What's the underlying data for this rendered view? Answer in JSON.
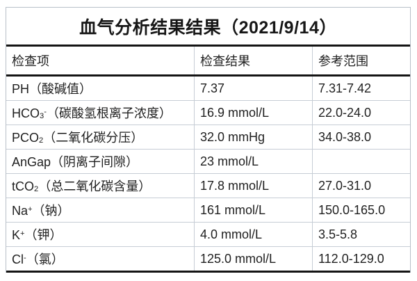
{
  "title": "血气分析结果结果（2021/9/14）",
  "colors": {
    "text": "#1f1f1f",
    "thick_rule": "#141414",
    "thin_rule": "#c6cdd5",
    "outer_border": "#b7bfc8",
    "background": "#ffffff"
  },
  "table": {
    "headers": [
      "检查项",
      "检查结果",
      "参考范围"
    ],
    "rows": [
      {
        "item": [
          {
            "t": "PH"
          },
          {
            "t": "（酸碱值）"
          }
        ],
        "result": "7.37",
        "range": "7.31-7.42"
      },
      {
        "item": [
          {
            "t": "HCO"
          },
          {
            "t": "3",
            "s": "sub"
          },
          {
            "t": "-",
            "s": "sup"
          },
          {
            "t": "（碳酸氢根离子浓度）"
          }
        ],
        "result": "16.9 mmol/L",
        "range": "22.0-24.0"
      },
      {
        "item": [
          {
            "t": "PCO"
          },
          {
            "t": "2",
            "s": "sub"
          },
          {
            "t": "（二氧化碳分压）"
          }
        ],
        "result": "32.0 mmHg",
        "range": "34.0-38.0"
      },
      {
        "item": [
          {
            "t": "AnGap"
          },
          {
            "t": "（阴离子间隙）"
          }
        ],
        "result": "23 mmol/L",
        "range": ""
      },
      {
        "item": [
          {
            "t": "tCO"
          },
          {
            "t": "2",
            "s": "sub"
          },
          {
            "t": "（总二氧化碳含量）"
          }
        ],
        "result": "17.8 mmol/L",
        "range": "27.0-31.0"
      },
      {
        "item": [
          {
            "t": "Na"
          },
          {
            "t": "+",
            "s": "sup"
          },
          {
            "t": "（钠）"
          }
        ],
        "result": "161 mmol/L",
        "range": "150.0-165.0"
      },
      {
        "item": [
          {
            "t": "K"
          },
          {
            "t": "+",
            "s": "sup"
          },
          {
            "t": "（钾）"
          }
        ],
        "result": "4.0 mmol/L",
        "range": "3.5-5.8"
      },
      {
        "item": [
          {
            "t": "Cl"
          },
          {
            "t": "-",
            "s": "sup"
          },
          {
            "t": "（氯）"
          }
        ],
        "result": "125.0 mmol/L",
        "range": "112.0-129.0"
      }
    ]
  }
}
